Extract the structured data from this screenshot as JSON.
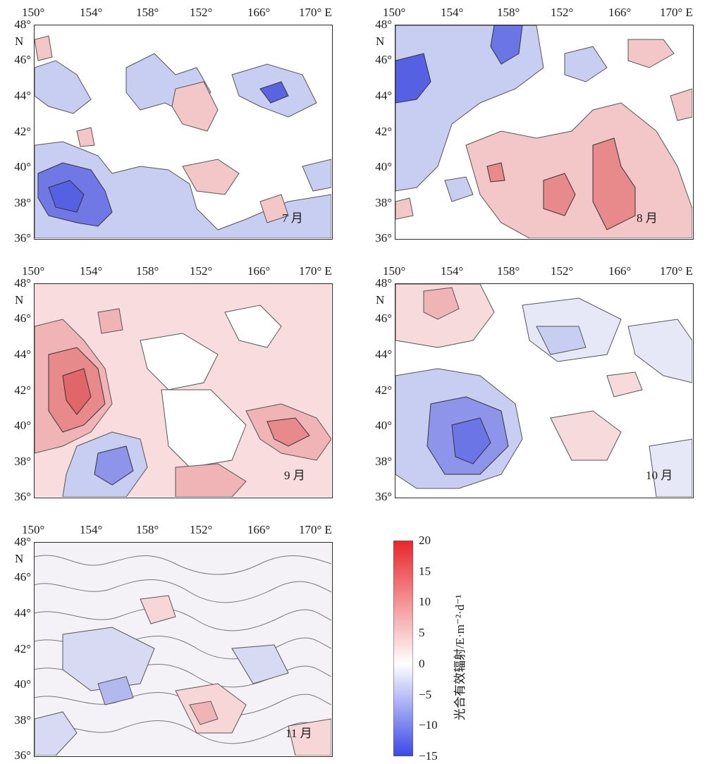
{
  "longitude_labels": [
    "150°",
    "154°",
    "158°",
    "152°",
    "166°",
    "170° E"
  ],
  "latitude_labels": [
    "48°",
    "46°",
    "44°",
    "42°",
    "40°",
    "38°",
    "36°"
  ],
  "north_label": "N",
  "panels": [
    {
      "month": "7 月"
    },
    {
      "month": "8 月"
    },
    {
      "month": "9 月"
    },
    {
      "month": "10 月"
    },
    {
      "month": "11 月"
    }
  ],
  "colorbar": {
    "title": "光合有效辐射/E·m⁻²·d⁻¹",
    "ticks": [
      "20",
      "15",
      "10",
      "5",
      "0",
      "−5",
      "−10",
      "−15"
    ],
    "colors": {
      "max": "#e8262b",
      "zero": "#ffffff",
      "min": "#3b48e6"
    }
  }
}
